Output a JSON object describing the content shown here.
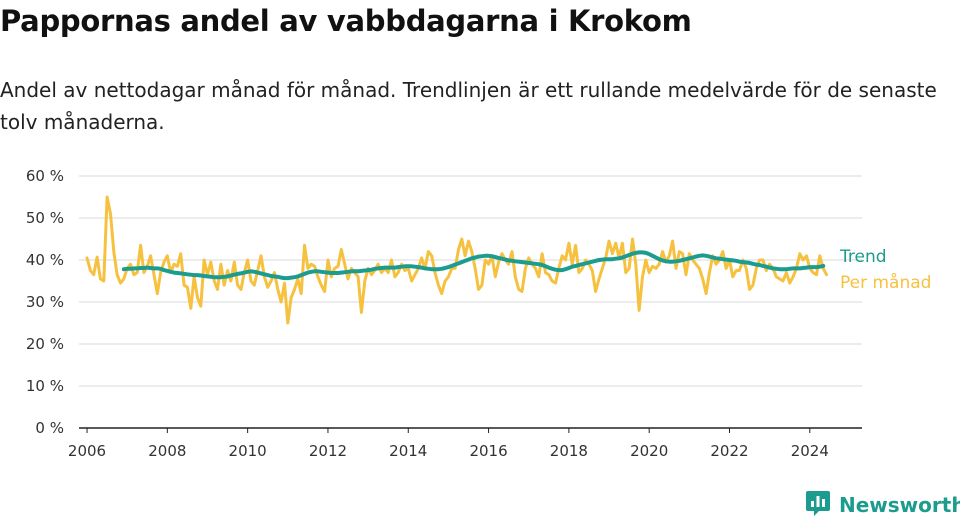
{
  "title": "Pappornas andel av vabbdagarna i Krokom",
  "subtitle": "Andel av nettodagar månad för månad. Trendlinjen är ett rullande medelvärde för de senaste tolv månaderna.",
  "brand": {
    "name": "Newsworthy",
    "icon": "newsworthy-logo-icon"
  },
  "colors": {
    "trend": "#1b9c8e",
    "monthly": "#f7c140",
    "grid": "#d9d9d9",
    "axis": "#222222"
  },
  "chart_data": {
    "type": "line",
    "ylim": [
      0,
      60
    ],
    "yticks": [
      0,
      10,
      20,
      30,
      40,
      50,
      60
    ],
    "ytick_labels": [
      "0 %",
      "10 %",
      "20 %",
      "30 %",
      "40 %",
      "50 %",
      "60 %"
    ],
    "xlim": [
      2005.8,
      2025.3
    ],
    "xticks": [
      2006,
      2008,
      2010,
      2012,
      2014,
      2016,
      2018,
      2020,
      2022,
      2024
    ],
    "xtick_labels": [
      "2006",
      "2008",
      "2010",
      "2012",
      "2014",
      "2016",
      "2018",
      "2020",
      "2022",
      "2024"
    ],
    "series": [
      {
        "name": "Per månad",
        "start": 2006.0,
        "step": 0.0833333,
        "values": [
          40.5,
          37.5,
          36.5,
          40.7,
          35.5,
          35,
          55,
          51,
          42,
          36.5,
          34.5,
          35.5,
          38,
          39,
          36.5,
          37,
          43.5,
          37,
          38.5,
          41,
          36.5,
          32,
          37,
          39.5,
          41,
          37,
          39,
          38.5,
          41.5,
          34,
          33.5,
          28.5,
          36,
          31,
          29,
          40,
          36.5,
          39.5,
          35,
          33,
          39,
          34,
          37.5,
          35,
          39.5,
          34,
          33,
          37,
          40,
          35,
          34,
          37.5,
          41,
          36,
          33.5,
          35,
          37,
          33,
          30,
          34.5,
          25,
          31,
          33,
          35.5,
          32,
          43.5,
          38,
          39,
          38.5,
          36,
          34,
          32.5,
          40,
          36,
          38,
          38.5,
          42.5,
          39,
          35.5,
          38,
          37,
          36,
          27.5,
          35,
          38,
          36.5,
          37.5,
          39,
          37,
          38,
          37,
          40,
          36,
          37,
          39,
          37.5,
          38,
          35,
          36.5,
          38,
          40.5,
          38,
          42,
          41,
          37,
          34,
          32,
          35,
          36,
          38,
          38,
          42.5,
          45,
          41,
          44.5,
          42,
          38,
          33,
          34,
          40,
          39,
          41,
          36,
          39.5,
          41.5,
          40,
          39,
          42,
          36,
          33,
          32.5,
          38,
          40.5,
          39,
          38,
          36,
          41.5,
          37,
          36.5,
          35,
          34.5,
          38,
          41,
          40,
          44,
          39,
          43.5,
          37,
          38,
          40,
          39,
          37.5,
          32.5,
          35.5,
          38,
          40.5,
          44.5,
          41.5,
          44,
          40.5,
          44,
          37,
          38,
          45,
          39,
          28,
          36,
          40,
          37,
          38.5,
          38,
          39,
          42,
          39.5,
          41,
          44.5,
          38,
          42,
          41.5,
          36.5,
          41.5,
          40,
          39,
          38,
          35.5,
          32,
          37,
          41,
          39,
          40,
          42,
          38,
          40,
          36,
          37.5,
          37.5,
          40,
          38,
          33,
          34,
          38,
          40,
          40,
          37.5,
          39,
          38,
          36,
          35.5,
          35,
          37,
          34.5,
          36,
          38,
          41.5,
          40,
          41,
          38,
          37,
          36.5,
          41,
          38,
          36.5
        ]
      },
      {
        "name": "Trend",
        "start": 2006.917,
        "step": 0.0833333,
        "values": [
          37.8,
          37.9,
          37.9,
          38,
          38,
          38.1,
          38.1,
          38.2,
          38.1,
          38,
          38,
          37.9,
          37.6,
          37.4,
          37.2,
          37,
          36.9,
          36.8,
          36.7,
          36.6,
          36.5,
          36.4,
          36.4,
          36.3,
          36.2,
          36.1,
          36,
          35.9,
          35.9,
          35.9,
          36,
          36.1,
          36.3,
          36.5,
          36.7,
          36.8,
          37,
          37.2,
          37.3,
          37.2,
          37,
          36.8,
          36.6,
          36.4,
          36.2,
          36.1,
          36,
          35.8,
          35.7,
          35.7,
          35.8,
          35.9,
          36.1,
          36.4,
          36.7,
          37,
          37.2,
          37.3,
          37.3,
          37.2,
          37.1,
          37,
          36.9,
          36.9,
          36.9,
          37,
          37.1,
          37.2,
          37.3,
          37.3,
          37.3,
          37.4,
          37.5,
          37.6,
          37.7,
          37.9,
          38,
          38.1,
          38.2,
          38.2,
          38.2,
          38.2,
          38.3,
          38.4,
          38.5,
          38.5,
          38.5,
          38.4,
          38.3,
          38.2,
          38,
          37.9,
          37.8,
          37.8,
          37.8,
          37.9,
          38.1,
          38.3,
          38.6,
          38.9,
          39.2,
          39.5,
          39.8,
          40.1,
          40.4,
          40.6,
          40.8,
          40.9,
          41,
          41,
          40.9,
          40.7,
          40.5,
          40.3,
          40.1,
          39.9,
          39.8,
          39.7,
          39.6,
          39.5,
          39.4,
          39.3,
          39.2,
          39.1,
          39,
          38.8,
          38.5,
          38.2,
          37.9,
          37.7,
          37.6,
          37.6,
          37.8,
          38.1,
          38.4,
          38.6,
          38.8,
          39,
          39.2,
          39.4,
          39.6,
          39.8,
          40,
          40.1,
          40.2,
          40.2,
          40.2,
          40.3,
          40.4,
          40.6,
          40.9,
          41.2,
          41.5,
          41.7,
          41.8,
          41.8,
          41.7,
          41.4,
          41,
          40.6,
          40.2,
          39.9,
          39.7,
          39.6,
          39.6,
          39.7,
          39.8,
          40,
          40.2,
          40.4,
          40.6,
          40.8,
          41,
          41.1,
          41,
          40.8,
          40.6,
          40.4,
          40.3,
          40.2,
          40.1,
          40,
          39.9,
          39.8,
          39.6,
          39.5,
          39.4,
          39.3,
          39.1,
          38.9,
          38.8,
          38.6,
          38.4,
          38.2,
          38,
          37.9,
          37.8,
          37.8,
          37.8,
          37.9,
          38,
          38,
          38,
          38.1,
          38.2,
          38.3,
          38.3,
          38.3,
          38.4,
          38.6
        ]
      }
    ],
    "legend": {
      "trend": "Trend",
      "monthly": "Per månad"
    }
  }
}
